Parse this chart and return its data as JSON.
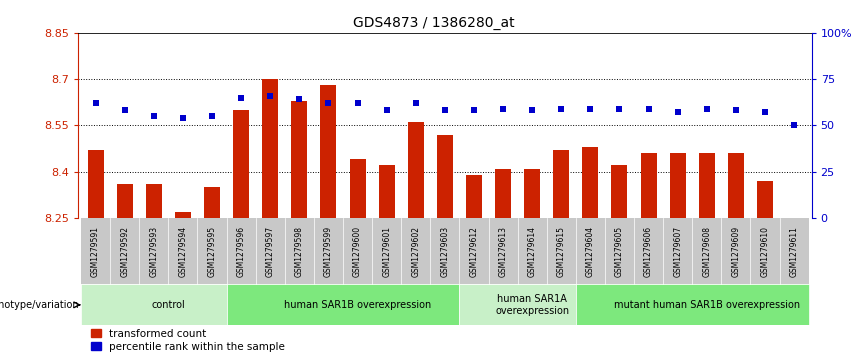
{
  "title": "GDS4873 / 1386280_at",
  "samples": [
    "GSM1279591",
    "GSM1279592",
    "GSM1279593",
    "GSM1279594",
    "GSM1279595",
    "GSM1279596",
    "GSM1279597",
    "GSM1279598",
    "GSM1279599",
    "GSM1279600",
    "GSM1279601",
    "GSM1279602",
    "GSM1279603",
    "GSM1279612",
    "GSM1279613",
    "GSM1279614",
    "GSM1279615",
    "GSM1279604",
    "GSM1279605",
    "GSM1279606",
    "GSM1279607",
    "GSM1279608",
    "GSM1279609",
    "GSM1279610",
    "GSM1279611"
  ],
  "transformed_count": [
    8.47,
    8.36,
    8.36,
    8.27,
    8.35,
    8.6,
    8.7,
    8.63,
    8.68,
    8.44,
    8.42,
    8.56,
    8.52,
    8.39,
    8.41,
    8.41,
    8.47,
    8.48,
    8.42,
    8.46,
    8.46,
    8.46,
    8.46,
    8.37,
    8.25
  ],
  "percentile_rank": [
    62,
    58,
    55,
    54,
    55,
    65,
    66,
    64,
    62,
    62,
    58,
    62,
    58,
    58,
    59,
    58,
    59,
    59,
    59,
    59,
    57,
    59,
    58,
    57,
    50
  ],
  "ylim_left": [
    8.25,
    8.85
  ],
  "ylim_right": [
    0,
    100
  ],
  "yticks_left": [
    8.25,
    8.4,
    8.55,
    8.7,
    8.85
  ],
  "yticks_right": [
    0,
    25,
    50,
    75,
    100
  ],
  "ytick_labels_right": [
    "0",
    "25",
    "50",
    "75",
    "100%"
  ],
  "groups": [
    {
      "label": "control",
      "start": 0,
      "end": 5,
      "color": "#c8f0c8"
    },
    {
      "label": "human SAR1B overexpression",
      "start": 5,
      "end": 13,
      "color": "#7de87d"
    },
    {
      "label": "human SAR1A\noverexpression",
      "start": 13,
      "end": 17,
      "color": "#c8f0c8"
    },
    {
      "label": "mutant human SAR1B overexpression",
      "start": 17,
      "end": 25,
      "color": "#7de87d"
    }
  ],
  "bar_color": "#cc2200",
  "dot_color": "#0000cc",
  "axis_left_color": "#cc2200",
  "axis_right_color": "#0000cc",
  "sample_bg_color": "#c8c8c8",
  "sample_border_color": "#ffffff",
  "legend_label_red": "transformed count",
  "legend_label_blue": "percentile rank within the sample",
  "genotype_label": "genotype/variation"
}
